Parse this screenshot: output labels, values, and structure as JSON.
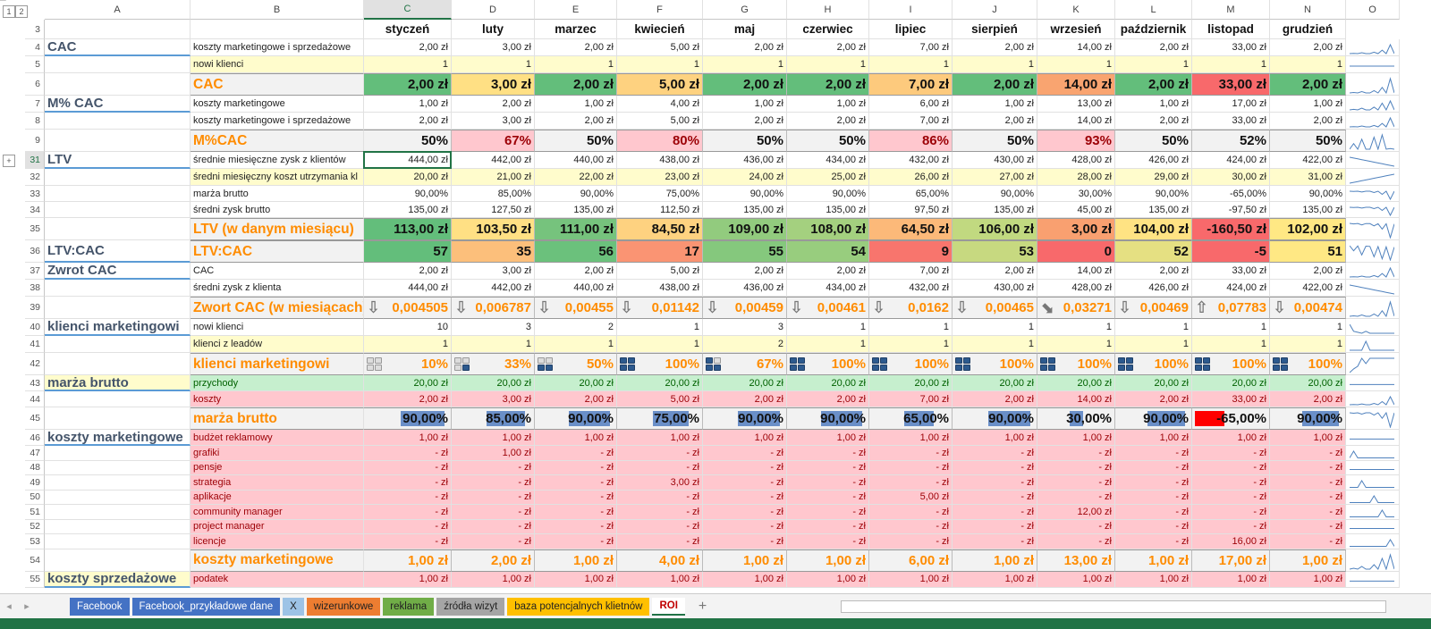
{
  "columns": [
    "A",
    "B",
    "C",
    "D",
    "E",
    "F",
    "G",
    "H",
    "I",
    "J",
    "K",
    "L",
    "M",
    "N",
    "O"
  ],
  "selected_column": "C",
  "selected_row": "31",
  "outline_levels": [
    "1",
    "2"
  ],
  "outline_expand": "+",
  "months": [
    "styczeń",
    "luty",
    "marzec",
    "kwiecień",
    "maj",
    "czerwiec",
    "lipiec",
    "sierpień",
    "wrzesień",
    "październik",
    "listopad",
    "grudzień"
  ],
  "colors": {
    "green": "#63be7b",
    "yellow_input": "#fffccc",
    "header_gray": "#f2f2f2",
    "pink": "#ffc7ce",
    "light_green": "#c6efce",
    "orange_text": "#ff8c00",
    "databar": "#6a8fc8"
  },
  "rows": [
    {
      "num": "4",
      "a": "CAC",
      "b": "koszty marketingowe i sprzedażowe",
      "style": "n",
      "values": [
        "2,00 zł",
        "3,00 zł",
        "2,00 zł",
        "5,00 zł",
        "2,00 zł",
        "2,00 zł",
        "7,00 zł",
        "2,00 zł",
        "14,00 zł",
        "2,00 zł",
        "33,00 zł",
        "2,00 zł"
      ]
    },
    {
      "num": "5",
      "a": "",
      "b": "nowi klienci",
      "style": "y",
      "values": [
        "1",
        "1",
        "1",
        "1",
        "1",
        "1",
        "1",
        "1",
        "1",
        "1",
        "1",
        "1"
      ]
    },
    {
      "num": "6",
      "a": "",
      "b": "CAC",
      "style": "big",
      "values": [
        "2,00 zł",
        "3,00 zł",
        "2,00 zł",
        "5,00 zł",
        "2,00 zł",
        "2,00 zł",
        "7,00 zł",
        "2,00 zł",
        "14,00 zł",
        "2,00 zł",
        "33,00 zł",
        "2,00 zł"
      ],
      "fills": [
        "#63be7b",
        "#ffe084",
        "#63be7b",
        "#fed280",
        "#63be7b",
        "#63be7b",
        "#fdca7d",
        "#63be7b",
        "#f9a470",
        "#63be7b",
        "#f8696b",
        "#63be7b"
      ]
    },
    {
      "num": "7",
      "a": "M% CAC",
      "b": "koszty marketingowe",
      "style": "n",
      "values": [
        "1,00 zł",
        "2,00 zł",
        "1,00 zł",
        "4,00 zł",
        "1,00 zł",
        "1,00 zł",
        "6,00 zł",
        "1,00 zł",
        "13,00 zł",
        "1,00 zł",
        "17,00 zł",
        "1,00 zł"
      ]
    },
    {
      "num": "8",
      "a": "",
      "b": "koszty marketingowe i sprzedażowe",
      "style": "n",
      "values": [
        "2,00 zł",
        "3,00 zł",
        "2,00 zł",
        "5,00 zł",
        "2,00 zł",
        "2,00 zł",
        "7,00 zł",
        "2,00 zł",
        "14,00 zł",
        "2,00 zł",
        "33,00 zł",
        "2,00 zł"
      ]
    },
    {
      "num": "9",
      "a": "",
      "b": "M%CAC",
      "style": "big",
      "values": [
        "50%",
        "67%",
        "50%",
        "80%",
        "50%",
        "50%",
        "86%",
        "50%",
        "93%",
        "50%",
        "52%",
        "50%"
      ],
      "fills": [
        "#f2f2f2",
        "#ffc7ce",
        "#f2f2f2",
        "#ffc7ce",
        "#f2f2f2",
        "#f2f2f2",
        "#ffc7ce",
        "#f2f2f2",
        "#ffc7ce",
        "#f2f2f2",
        "#f2f2f2",
        "#f2f2f2"
      ],
      "text_colors": [
        "#111",
        "#9c0006",
        "#111",
        "#9c0006",
        "#111",
        "#111",
        "#9c0006",
        "#111",
        "#9c0006",
        "#111",
        "#111",
        "#111"
      ]
    },
    {
      "num": "31",
      "a": "LTV",
      "b": "średnie miesięczne zysk z klientów",
      "style": "n",
      "values": [
        "444,00 zł",
        "442,00 zł",
        "440,00 zł",
        "438,00 zł",
        "436,00 zł",
        "434,00 zł",
        "432,00 zł",
        "430,00 zł",
        "428,00 zł",
        "426,00 zł",
        "424,00 zł",
        "422,00 zł"
      ]
    },
    {
      "num": "32",
      "a": "",
      "b": "średni miesięczny koszt utrzymania kl",
      "style": "y",
      "values": [
        "20,00 zł",
        "21,00 zł",
        "22,00 zł",
        "23,00 zł",
        "24,00 zł",
        "25,00 zł",
        "26,00 zł",
        "27,00 zł",
        "28,00 zł",
        "29,00 zł",
        "30,00 zł",
        "31,00 zł"
      ]
    },
    {
      "num": "33",
      "a": "",
      "b": "marża brutto",
      "style": "s",
      "values": [
        "90,00%",
        "85,00%",
        "90,00%",
        "75,00%",
        "90,00%",
        "90,00%",
        "65,00%",
        "90,00%",
        "30,00%",
        "90,00%",
        "-65,00%",
        "90,00%"
      ]
    },
    {
      "num": "34",
      "a": "",
      "b": "średni zysk brutto",
      "style": "s",
      "values": [
        "135,00 zł",
        "127,50 zł",
        "135,00 zł",
        "112,50 zł",
        "135,00 zł",
        "135,00 zł",
        "97,50 zł",
        "135,00 zł",
        "45,00 zł",
        "135,00 zł",
        "-97,50 zł",
        "135,00 zł"
      ]
    },
    {
      "num": "35",
      "a": "",
      "b": "LTV (w danym miesiącu)",
      "style": "big",
      "values": [
        "113,00 zł",
        "103,50 zł",
        "111,00 zł",
        "84,50 zł",
        "109,00 zł",
        "108,00 zł",
        "64,50 zł",
        "106,00 zł",
        "3,00 zł",
        "104,00 zł",
        "-160,50 zł",
        "102,00 zł"
      ],
      "fills": [
        "#63be7b",
        "#ffe084",
        "#76c37d",
        "#fed280",
        "#92cb7e",
        "#a4d07f",
        "#fcb979",
        "#c1d980",
        "#f9a070",
        "#ffe383",
        "#f8696b",
        "#ffe884"
      ]
    },
    {
      "num": "36",
      "a": "LTV:CAC",
      "b": "LTV:CAC",
      "style": "big",
      "values": [
        "57",
        "35",
        "56",
        "17",
        "55",
        "54",
        "9",
        "53",
        "0",
        "52",
        "-5",
        "51"
      ],
      "fills": [
        "#63be7b",
        "#fcbf7b",
        "#6bc17c",
        "#fa9473",
        "#85c87d",
        "#98cd7e",
        "#f8756d",
        "#c7d980",
        "#f8696b",
        "#e5e082",
        "#f8696b",
        "#ffe884"
      ]
    },
    {
      "num": "37",
      "a": "Zwrot CAC",
      "b": "CAC",
      "style": "n",
      "values": [
        "2,00 zł",
        "3,00 zł",
        "2,00 zł",
        "5,00 zł",
        "2,00 zł",
        "2,00 zł",
        "7,00 zł",
        "2,00 zł",
        "14,00 zł",
        "2,00 zł",
        "33,00 zł",
        "2,00 zł"
      ]
    },
    {
      "num": "38",
      "a": "",
      "b": "średni zysk z klienta",
      "style": "n",
      "values": [
        "444,00 zł",
        "442,00 zł",
        "440,00 zł",
        "438,00 zł",
        "436,00 zł",
        "434,00 zł",
        "432,00 zł",
        "430,00 zł",
        "428,00 zł",
        "426,00 zł",
        "424,00 zł",
        "422,00 zł"
      ]
    },
    {
      "num": "39",
      "a": "",
      "b": "Zwort CAC (w miesiącach)",
      "style": "big",
      "kind": "arrows",
      "values": [
        "0,004505",
        "0,006787",
        "0,00455",
        "0,01142",
        "0,00459",
        "0,00461",
        "0,0162",
        "0,00465",
        "0,03271",
        "0,00469",
        "0,07783",
        "0,00474"
      ],
      "icons": [
        "arrow-down",
        "arrow-down",
        "arrow-down",
        "arrow-down",
        "arrow-down",
        "arrow-down",
        "arrow-down",
        "arrow-down",
        "arrow-down-right",
        "arrow-down",
        "arrow-up",
        "arrow-down"
      ]
    },
    {
      "num": "40",
      "a": "klienci marketingowi",
      "b": "nowi klienci",
      "style": "n",
      "values": [
        "10",
        "3",
        "2",
        "1",
        "3",
        "1",
        "1",
        "1",
        "1",
        "1",
        "1",
        "1"
      ]
    },
    {
      "num": "41",
      "a": "",
      "b": "klienci z leadów",
      "style": "y",
      "values": [
        "1",
        "1",
        "1",
        "1",
        "2",
        "1",
        "1",
        "1",
        "1",
        "1",
        "1",
        "1"
      ]
    },
    {
      "num": "42",
      "a": "",
      "b": "klienci marketingowi",
      "style": "big",
      "kind": "quads",
      "values": [
        "10%",
        "33%",
        "50%",
        "100%",
        "67%",
        "100%",
        "100%",
        "100%",
        "100%",
        "100%",
        "100%",
        "100%"
      ],
      "quads": [
        0,
        1,
        2,
        4,
        3,
        4,
        4,
        4,
        4,
        4,
        4,
        4
      ]
    },
    {
      "num": "43",
      "a": "marża brutto",
      "b": "przychody",
      "style": "g",
      "values": [
        "20,00 zł",
        "20,00 zł",
        "20,00 zł",
        "20,00 zł",
        "20,00 zł",
        "20,00 zł",
        "20,00 zł",
        "20,00 zł",
        "20,00 zł",
        "20,00 zł",
        "20,00 zł",
        "20,00 zł"
      ]
    },
    {
      "num": "44",
      "a": "",
      "b": "koszty",
      "style": "p",
      "values": [
        "2,00 zł",
        "3,00 zł",
        "2,00 zł",
        "5,00 zł",
        "2,00 zł",
        "2,00 zł",
        "7,00 zł",
        "2,00 zł",
        "14,00 zł",
        "2,00 zł",
        "33,00 zł",
        "2,00 zł"
      ]
    },
    {
      "num": "45",
      "a": "",
      "b": "marża brutto",
      "style": "big",
      "kind": "bars",
      "values": [
        "90,00%",
        "85,00%",
        "90,00%",
        "75,00%",
        "90,00%",
        "90,00%",
        "65,00%",
        "90,00%",
        "30,00%",
        "90,00%",
        "-65,00%",
        "90,00%"
      ]
    },
    {
      "num": "46",
      "a": "koszty marketingowe",
      "b": "budżet reklamowy",
      "style": "p",
      "values": [
        "1,00 zł",
        "1,00 zł",
        "1,00 zł",
        "1,00 zł",
        "1,00 zł",
        "1,00 zł",
        "1,00 zł",
        "1,00 zł",
        "1,00 zł",
        "1,00 zł",
        "1,00 zł",
        "1,00 zł"
      ]
    },
    {
      "num": "47",
      "a": "",
      "b": "grafiki",
      "style": "ps",
      "values": [
        "-   zł",
        "1,00 zł",
        "-   zł",
        "-   zł",
        "-   zł",
        "-   zł",
        "-   zł",
        "-   zł",
        "-   zł",
        "-   zł",
        "-   zł",
        "-   zł"
      ]
    },
    {
      "num": "48",
      "a": "",
      "b": "pensje",
      "style": "ps",
      "values": [
        "-   zł",
        "-   zł",
        "-   zł",
        "-   zł",
        "-   zł",
        "-   zł",
        "-   zł",
        "-   zł",
        "-   zł",
        "-   zł",
        "-   zł",
        "-   zł"
      ]
    },
    {
      "num": "49",
      "a": "",
      "b": "strategia",
      "style": "ps",
      "values": [
        "-   zł",
        "-   zł",
        "-   zł",
        "3,00 zł",
        "-   zł",
        "-   zł",
        "-   zł",
        "-   zł",
        "-   zł",
        "-   zł",
        "-   zł",
        "-   zł"
      ]
    },
    {
      "num": "50",
      "a": "",
      "b": "aplikacje",
      "style": "ps",
      "values": [
        "-   zł",
        "-   zł",
        "-   zł",
        "-   zł",
        "-   zł",
        "-   zł",
        "5,00 zł",
        "-   zł",
        "-   zł",
        "-   zł",
        "-   zł",
        "-   zł"
      ]
    },
    {
      "num": "51",
      "a": "",
      "b": "community manager",
      "style": "ps",
      "values": [
        "-   zł",
        "-   zł",
        "-   zł",
        "-   zł",
        "-   zł",
        "-   zł",
        "-   zł",
        "-   zł",
        "12,00 zł",
        "-   zł",
        "-   zł",
        "-   zł"
      ]
    },
    {
      "num": "52",
      "a": "",
      "b": "project manager",
      "style": "ps",
      "values": [
        "-   zł",
        "-   zł",
        "-   zł",
        "-   zł",
        "-   zł",
        "-   zł",
        "-   zł",
        "-   zł",
        "-   zł",
        "-   zł",
        "-   zł",
        "-   zł"
      ]
    },
    {
      "num": "53",
      "a": "",
      "b": "licencje",
      "style": "ps",
      "values": [
        "-   zł",
        "-   zł",
        "-   zł",
        "-   zł",
        "-   zł",
        "-   zł",
        "-   zł",
        "-   zł",
        "-   zł",
        "-   zł",
        "16,00 zł",
        "-   zł"
      ]
    },
    {
      "num": "54",
      "a": "",
      "b": "koszty marketingowe",
      "style": "big",
      "kind": "orange",
      "values": [
        "1,00 zł",
        "2,00 zł",
        "1,00 zł",
        "4,00 zł",
        "1,00 zł",
        "1,00 zł",
        "6,00 zł",
        "1,00 zł",
        "13,00 zł",
        "1,00 zł",
        "17,00 zł",
        "1,00 zł"
      ]
    },
    {
      "num": "55",
      "a": "koszty sprzedażowe",
      "b": "podatek",
      "style": "p",
      "values": [
        "1,00 zł",
        "1,00 zł",
        "1,00 zł",
        "1,00 zł",
        "1,00 zł",
        "1,00 zł",
        "1,00 zł",
        "1,00 zł",
        "1,00 zł",
        "1,00 zł",
        "1,00 zł",
        "1,00 zł"
      ]
    }
  ],
  "tabs": [
    {
      "label": "Facebook",
      "color": "#4472c4",
      "text": "#fff"
    },
    {
      "label": "Facebook_przykładowe dane",
      "color": "#4472c4",
      "text": "#fff"
    },
    {
      "label": "X",
      "color": "#9dc3e6",
      "text": "#222"
    },
    {
      "label": "wizerunkowe",
      "color": "#ed7d31",
      "text": "#222"
    },
    {
      "label": "reklama",
      "color": "#70ad47",
      "text": "#222"
    },
    {
      "label": "źródła wizyt",
      "color": "#a5a5a5",
      "text": "#222"
    },
    {
      "label": "baza potencjalnych klietnów",
      "color": "#ffc000",
      "text": "#222"
    },
    {
      "label": "ROI",
      "color": "#ffffff",
      "text": "#c00000",
      "active": true
    }
  ],
  "add_sheet": "+"
}
